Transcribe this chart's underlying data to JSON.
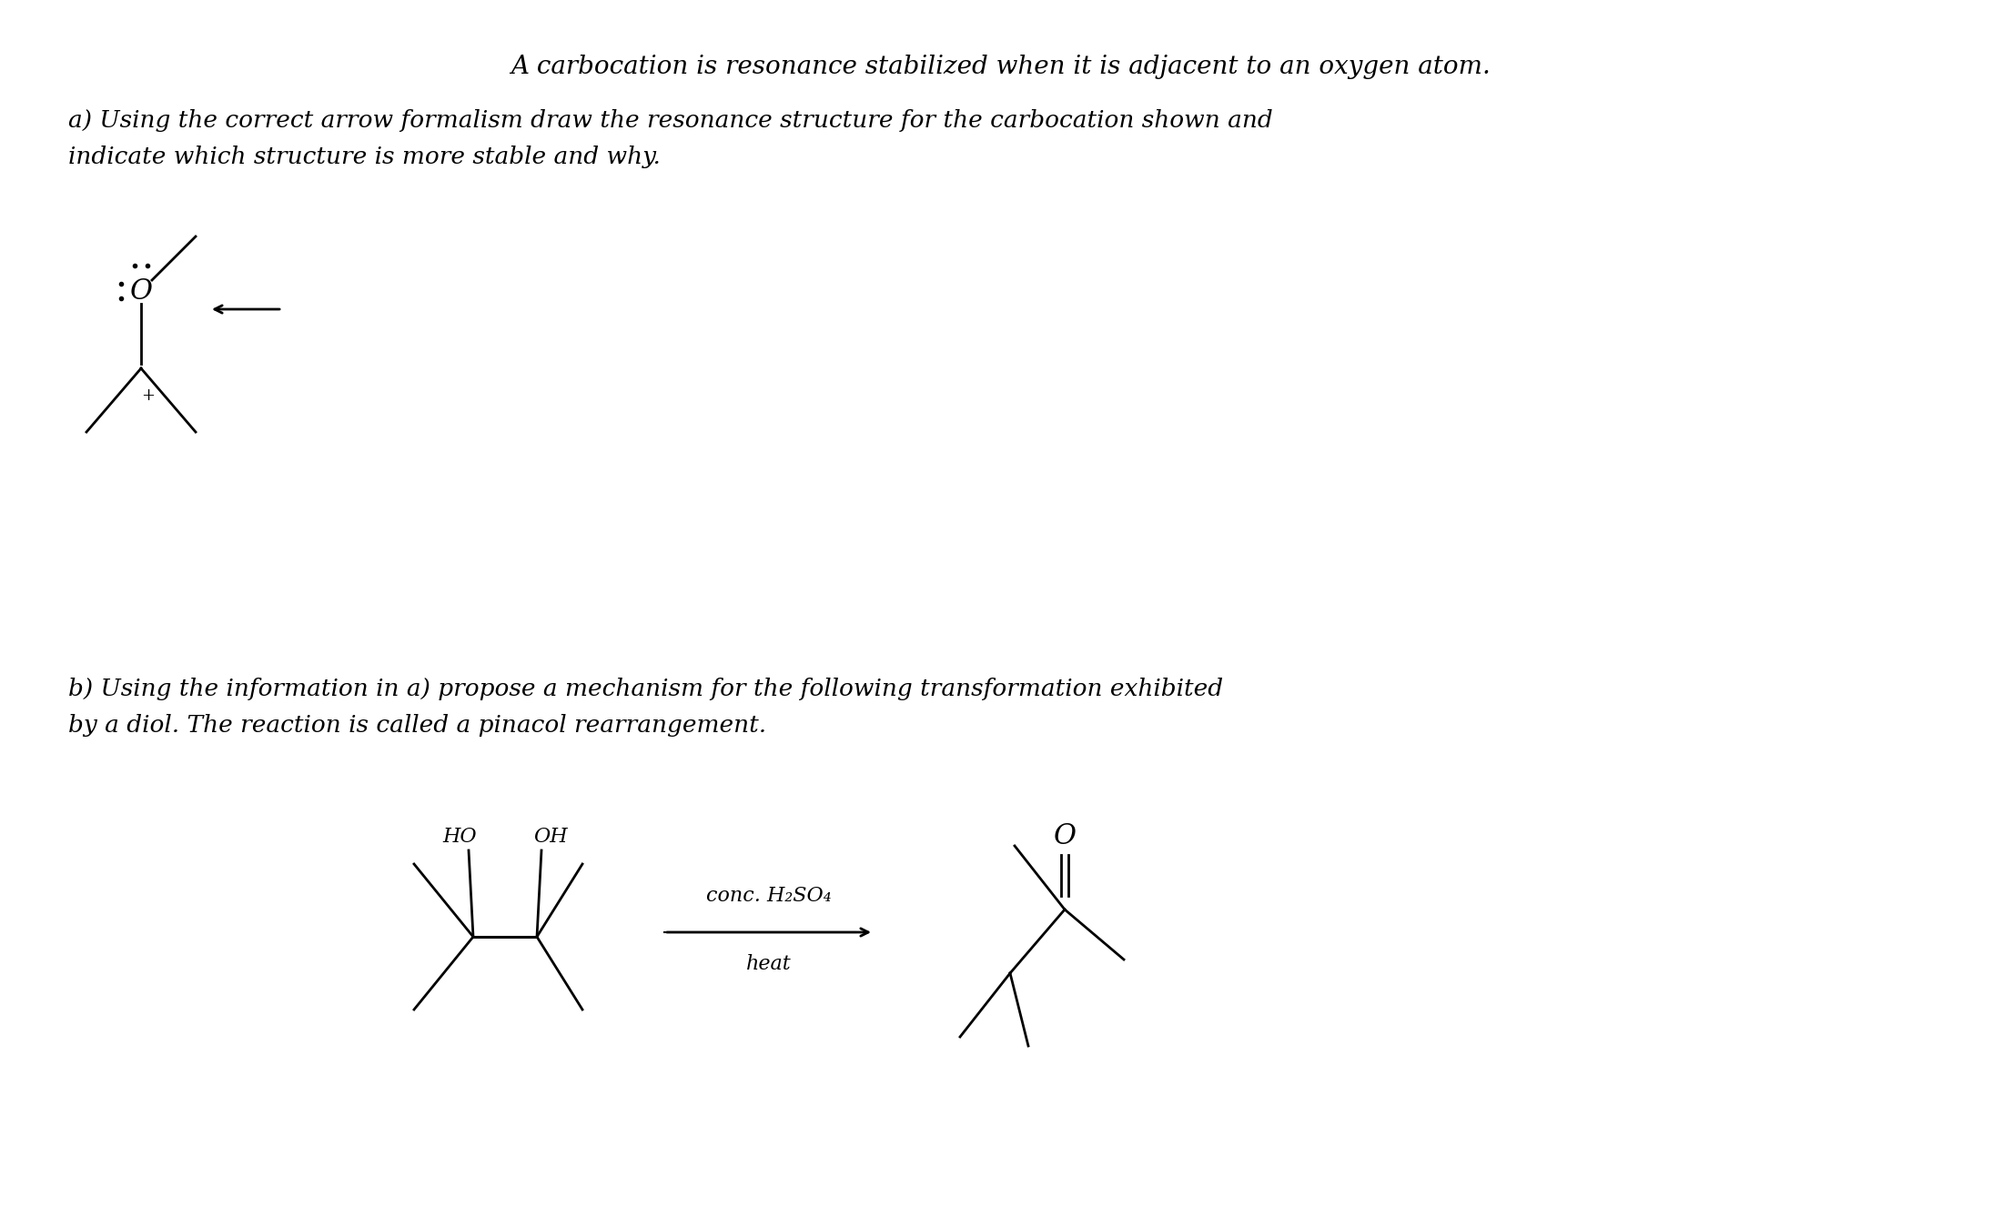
{
  "title_line": "A carbocation is resonance stabilized when it is adjacent to an oxygen atom.",
  "part_a_text1": "a) Using the correct arrow formalism draw the resonance structure for the carbocation shown and",
  "part_a_text2": "indicate which structure is more stable and why.",
  "part_b_text1": "b) Using the information in a) propose a mechanism for the following transformation exhibited",
  "part_b_text2": "by a diol. The reaction is called a pinacol rearrangement.",
  "reagent_text": "conc. H₂SO₄",
  "heat_text": "heat",
  "ho_text": "HO",
  "oh_text": "OH",
  "o_text": "O",
  "bg_color": "#ffffff",
  "text_color": "#000000",
  "title_fontsize": 20,
  "body_fontsize": 19,
  "label_fontsize": 16,
  "chem_fontsize": 18
}
